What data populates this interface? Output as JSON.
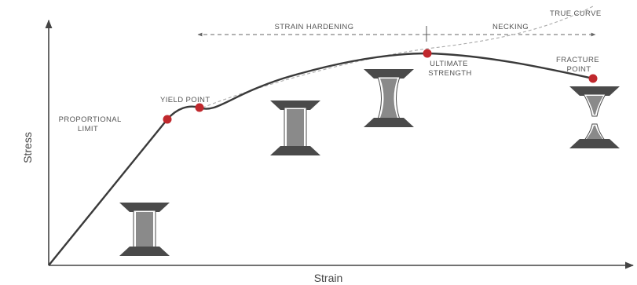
{
  "axes": {
    "x_label": "Strain",
    "y_label": "Stress"
  },
  "regions": {
    "strain_hardening": "STRAIN HARDENING",
    "necking": "NECKING"
  },
  "curves": {
    "true_curve": "TRUE CURVE"
  },
  "points": {
    "proportional_limit": [
      "PROPORTIONAL",
      "LIMIT"
    ],
    "yield_point": "YIELD POINT",
    "ultimate_strength": [
      "ULTIMATE",
      "STRENGTH"
    ],
    "fracture_point": [
      "FRACTURE",
      "POINT"
    ]
  },
  "colors": {
    "curve": "#3a3a3a",
    "point": "#c0282d",
    "specimen_grip": "#4a4a4a",
    "specimen_body": "#8a8a8a",
    "arrow": "#666666",
    "true_curve": "#aaaaaa"
  }
}
